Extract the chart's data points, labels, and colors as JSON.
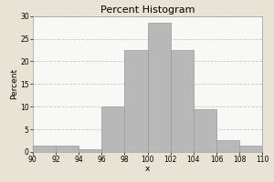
{
  "title": "Percent Histogram",
  "xlabel": "x",
  "ylabel": "Percent",
  "bar_color": "#b8b8b8",
  "bar_edge_color": "#999999",
  "background_color": "#e8e3d5",
  "plot_bg_color": "#f8f8f4",
  "xlim": [
    90,
    110
  ],
  "ylim": [
    0,
    30
  ],
  "xticks": [
    90,
    92,
    94,
    96,
    98,
    100,
    102,
    104,
    106,
    108,
    110
  ],
  "yticks": [
    0,
    5,
    10,
    15,
    20,
    25,
    30
  ],
  "bar_lefts": [
    90,
    92,
    94,
    96,
    98,
    100,
    102,
    104,
    106,
    108
  ],
  "bar_widths": [
    2,
    2,
    2,
    2,
    2,
    2,
    2,
    2,
    2,
    2
  ],
  "bar_heights": [
    1.3,
    1.3,
    0.5,
    10.0,
    22.5,
    28.5,
    22.5,
    9.5,
    2.5,
    1.3
  ],
  "grid_color": "#c8c8c8",
  "grid_linestyle": "--",
  "title_fontsize": 8,
  "axis_fontsize": 6.5,
  "tick_fontsize": 5.5
}
